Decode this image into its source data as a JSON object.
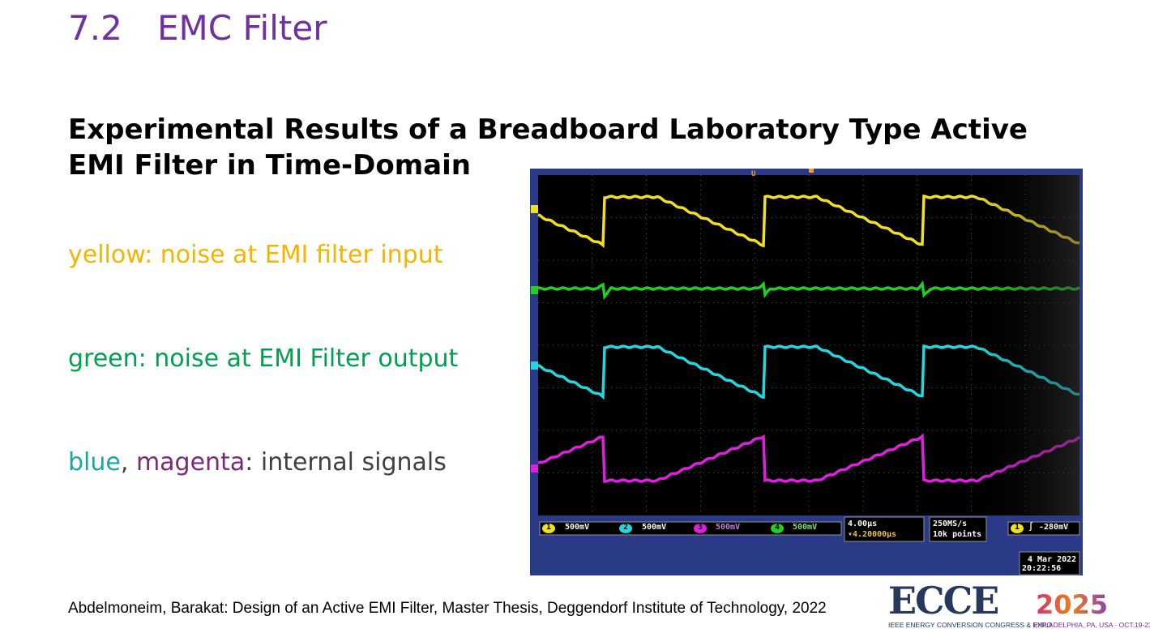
{
  "slide": {
    "section_number": "7.2",
    "section_title": "EMC Filter",
    "heading": "Experimental Results of a Breadboard Laboratory Type Active EMI Filter in Time-Domain",
    "legend": {
      "yellow": "yellow: noise at EMI filter input",
      "green": "green: noise at EMI Filter output",
      "blue": "blue",
      "sep": ", ",
      "magenta": "magenta",
      "rest": ": internal signals"
    },
    "citation": "Abdelmoneim, Barakat: Design of an Active EMI Filter, Master Thesis, Deggendorf Institute of Technology, 2022"
  },
  "oscilloscope": {
    "channels": [
      {
        "num": "1",
        "scale": "500mV",
        "color": "#f0e020"
      },
      {
        "num": "2",
        "scale": "500mV",
        "color": "#20d8e0"
      },
      {
        "num": "3",
        "scale": "500mV",
        "color": "#e020e0"
      },
      {
        "num": "4",
        "scale": "500mV",
        "color": "#20d020"
      }
    ],
    "timebase": "4.00µs",
    "trigger_delay": "▾4.20000µs",
    "sample_rate": "250MS/s",
    "record_length": "10k points",
    "trigger_channel": "1",
    "trigger_level": "-280mV",
    "date": "4 Mar 2022",
    "time": "20:22:56",
    "trigger_marker": "U",
    "edge_symbol": "∫"
  },
  "logo": {
    "word": "ECCE",
    "year": "2025",
    "line1": "IEEE ENERGY CONVERSION CONGRESS & EXPO",
    "line2": "PHILADELPHIA, PA, USA · OCT.19-23"
  },
  "colors": {
    "title": "#7030a0",
    "yellow_text": "#f5b400",
    "green_text": "#00a050",
    "blue_text": "#1aa7a0",
    "magenta_text": "#7a2a7a",
    "scope_frame": "#2b3a86"
  }
}
